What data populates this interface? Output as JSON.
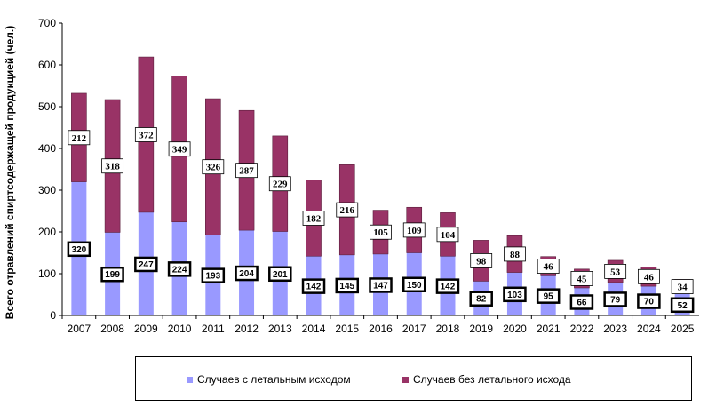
{
  "chart_data": {
    "type": "bar",
    "stacked": true,
    "title": "",
    "xlabel": "",
    "ylabel": "Всего отравлений спиртсодержащей продукцией (чел.)",
    "ylim": [
      0,
      700
    ],
    "yticks": [
      0,
      100,
      200,
      300,
      400,
      500,
      600,
      700
    ],
    "grid": false,
    "legend_position": "bottom",
    "categories": [
      "2007",
      "2008",
      "2009",
      "2010",
      "2011",
      "2012",
      "2013",
      "2014",
      "2015",
      "2016",
      "2017",
      "2018",
      "2019",
      "2020",
      "2021",
      "2022",
      "2023",
      "2024",
      "2025"
    ],
    "series": [
      {
        "name": "Случаев  с летальным исходом",
        "color": "#9999FF",
        "values": [
          320,
          199,
          247,
          224,
          193,
          204,
          201,
          142,
          145,
          147,
          150,
          142,
          82,
          103,
          95,
          66,
          79,
          70,
          52
        ]
      },
      {
        "name": "Случаев  без летального исхода",
        "color": "#993366",
        "values": [
          212,
          318,
          372,
          349,
          326,
          287,
          229,
          182,
          216,
          105,
          109,
          104,
          98,
          88,
          46,
          45,
          53,
          46,
          34
        ]
      }
    ]
  }
}
